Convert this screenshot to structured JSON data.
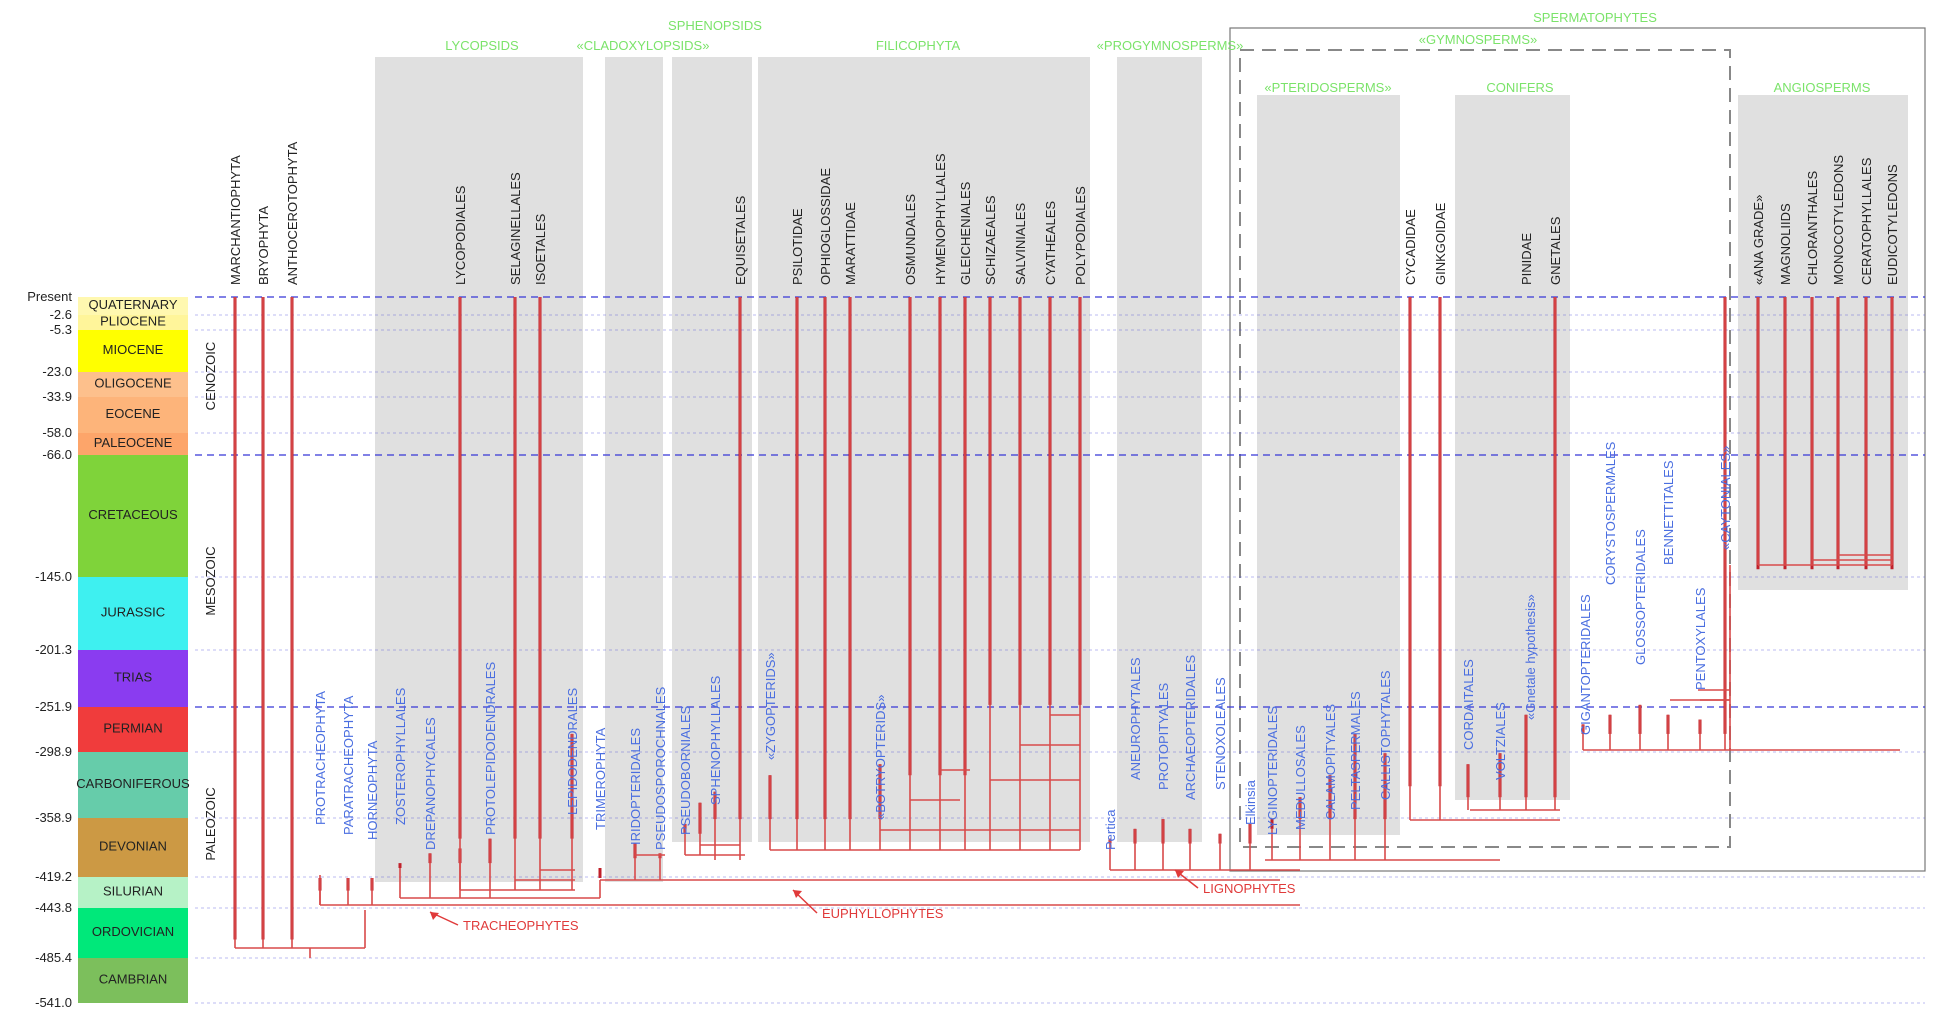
{
  "time_scale": {
    "ticks": [
      {
        "label": "Present",
        "age": 0
      },
      {
        "label": "-2.6",
        "age": 2.6
      },
      {
        "label": "-5.3",
        "age": 5.3
      },
      {
        "label": "-23.0",
        "age": 23.0
      },
      {
        "label": "-33.9",
        "age": 33.9
      },
      {
        "label": "-58.0",
        "age": 58.0
      },
      {
        "label": "-66.0",
        "age": 66.0
      },
      {
        "label": "-145.0",
        "age": 145.0
      },
      {
        "label": "-201.3",
        "age": 201.3
      },
      {
        "label": "-251.9",
        "age": 251.9
      },
      {
        "label": "-298.9",
        "age": 298.9
      },
      {
        "label": "-358.9",
        "age": 358.9
      },
      {
        "label": "-419.2",
        "age": 419.2
      },
      {
        "label": "-443.8",
        "age": 443.8
      },
      {
        "label": "-485.4",
        "age": 485.4
      },
      {
        "label": "-541.0",
        "age": 541.0
      }
    ],
    "periods": [
      {
        "label": "QUATERNARY",
        "from": 0,
        "to": 2.6,
        "color": "#fff8b0"
      },
      {
        "label": "PLIOCENE",
        "from": 2.6,
        "to": 5.3,
        "color": "#fff59a"
      },
      {
        "label": "MIOCENE",
        "from": 5.3,
        "to": 23.0,
        "color": "#ffff00"
      },
      {
        "label": "OLIGOCENE",
        "from": 23.0,
        "to": 33.9,
        "color": "#fdc08c"
      },
      {
        "label": "EOCENE",
        "from": 33.9,
        "to": 58.0,
        "color": "#fdb47a"
      },
      {
        "label": "PALEOCENE",
        "from": 58.0,
        "to": 66.0,
        "color": "#fda56a"
      },
      {
        "label": "CRETACEOUS",
        "from": 66.0,
        "to": 145.0,
        "color": "#7fd33a"
      },
      {
        "label": "JURASSIC",
        "from": 145.0,
        "to": 201.3,
        "color": "#3ef0f0"
      },
      {
        "label": "TRIAS",
        "from": 201.3,
        "to": 251.9,
        "color": "#8a3cf0"
      },
      {
        "label": "PERMIAN",
        "from": 251.9,
        "to": 298.9,
        "color": "#f03c3c"
      },
      {
        "label": "CARBONIFEROUS",
        "from": 298.9,
        "to": 358.9,
        "color": "#66ccaa"
      },
      {
        "label": "DEVONIAN",
        "from": 358.9,
        "to": 419.2,
        "color": "#cc9944"
      },
      {
        "label": "SILURIAN",
        "from": 419.2,
        "to": 443.8,
        "color": "#b6f2c6"
      },
      {
        "label": "ORDOVICIAN",
        "from": 443.8,
        "to": 485.4,
        "color": "#00e87a"
      },
      {
        "label": "CAMBRIAN",
        "from": 485.4,
        "to": 541.0,
        "color": "#7cbf5c"
      }
    ],
    "eras": [
      {
        "label": "CENOZOIC",
        "from": 0,
        "to": 66.0
      },
      {
        "label": "MESOZOIC",
        "from": 66.0,
        "to": 251.9
      },
      {
        "label": "PALEOZOIC",
        "from": 251.9,
        "to": 541.0
      }
    ]
  },
  "group_labels": [
    {
      "label": "SPERMATOPHYTES",
      "key": "sperm"
    },
    {
      "label": "LYCOPSIDS",
      "key": "lyco"
    },
    {
      "label": "«CLADOXYLOPSIDS»",
      "key": "clado"
    },
    {
      "label": "SPHENOPSIDS",
      "key": "spheno"
    },
    {
      "label": "FILICOPHYTA",
      "key": "fili"
    },
    {
      "label": "«PROGYMNOSPERMS»",
      "key": "progym"
    },
    {
      "label": "«GYMNOSPERMS»",
      "key": "gymno"
    },
    {
      "label": "«PTERIDOSPERMS»",
      "key": "pterido"
    },
    {
      "label": "CONIFERS",
      "key": "conif"
    },
    {
      "label": "ANGIOSPERMS",
      "key": "angio"
    }
  ],
  "extant_taxa": [
    {
      "label": "MARCHANTIOPHYTA",
      "key": "t1"
    },
    {
      "label": "BRYOPHYTA",
      "key": "t2"
    },
    {
      "label": "ANTHOCEROTOPHYTA",
      "key": "t3"
    },
    {
      "label": "LYCOPODIALES",
      "key": "t4"
    },
    {
      "label": "SELAGINELLALES",
      "key": "t5"
    },
    {
      "label": "ISOETALES",
      "key": "t6"
    },
    {
      "label": "EQUISETALES",
      "key": "t7"
    },
    {
      "label": "PSILOTIDAE",
      "key": "t8"
    },
    {
      "label": "OPHIOGLOSSIDAE",
      "key": "t9"
    },
    {
      "label": "MARATTIDAE",
      "key": "t10"
    },
    {
      "label": "OSMUNDALES",
      "key": "t11"
    },
    {
      "label": "HYMENOPHYLLALES",
      "key": "t12"
    },
    {
      "label": "GLEICHENIALES",
      "key": "t13"
    },
    {
      "label": "SCHIZAEALES",
      "key": "t14"
    },
    {
      "label": "SALVINIALES",
      "key": "t15"
    },
    {
      "label": "CYATHEALES",
      "key": "t16"
    },
    {
      "label": "POLYPODIALES",
      "key": "t17"
    },
    {
      "label": "CYCADIDAE",
      "key": "t18"
    },
    {
      "label": "GINKGOIDAE",
      "key": "t19"
    },
    {
      "label": "PINIDAE",
      "key": "t20"
    },
    {
      "label": "GNETALES",
      "key": "t21"
    },
    {
      "label": "«ANA GRADE»",
      "key": "t22"
    },
    {
      "label": "MAGNOLIIDS",
      "key": "t23"
    },
    {
      "label": "CHLORANTHALES",
      "key": "t24"
    },
    {
      "label": "MONOCOTYLEDONS",
      "key": "t25"
    },
    {
      "label": "CERATOPHYLLALES",
      "key": "t26"
    },
    {
      "label": "EUDICOTYLEDONS",
      "key": "t27"
    }
  ],
  "fossil_taxa": [
    {
      "label": "PROTRACHEOPHYTA",
      "key": "f1"
    },
    {
      "label": "PARATRACHEOPHYTA",
      "key": "f2"
    },
    {
      "label": "HORNEOPHYTA",
      "key": "f3"
    },
    {
      "label": "ZOSTEROPHYLLALES",
      "key": "f4"
    },
    {
      "label": "DREPANOPHYCALES",
      "key": "f5"
    },
    {
      "label": "PROTOLEPIDODENDRALES",
      "key": "f6"
    },
    {
      "label": "LEPIDODENDRALES",
      "key": "f7"
    },
    {
      "label": "TRIMEROPHYTA",
      "key": "f8"
    },
    {
      "label": "IRIDOPTERIDALES",
      "key": "f9"
    },
    {
      "label": "PSEUDOSPOROCHNALES",
      "key": "f10"
    },
    {
      "label": "PSEUDOBORNIALES",
      "key": "f11"
    },
    {
      "label": "SPHENOPHYLLALES",
      "key": "f12"
    },
    {
      "label": "«ZYGOPTERIDS»",
      "key": "f13"
    },
    {
      "label": "«BOTRYOPTERIDS»",
      "key": "f14"
    },
    {
      "label": "Pertica",
      "key": "f15"
    },
    {
      "label": "ANEUROPHYTALES",
      "key": "f16"
    },
    {
      "label": "PROTOPITYALES",
      "key": "f17"
    },
    {
      "label": "ARCHAEOPTERIDALES",
      "key": "f18"
    },
    {
      "label": "STENOXOLEALES",
      "key": "f19"
    },
    {
      "label": "Elkinsia",
      "key": "f20"
    },
    {
      "label": "LYGINOPTERIDALES",
      "key": "f21"
    },
    {
      "label": "MEDULLOSALES",
      "key": "f22"
    },
    {
      "label": "CALAMOPITYALES",
      "key": "f23"
    },
    {
      "label": "PELTASPERMALES",
      "key": "f24"
    },
    {
      "label": "CALLISTOPHYTALES",
      "key": "f25"
    },
    {
      "label": "CORDAITALES",
      "key": "f26"
    },
    {
      "label": "VOLTZIALES",
      "key": "f27"
    },
    {
      "label": "«Gnetale hypothesis»",
      "key": "f28"
    },
    {
      "label": "GIGANTOPTERIDALES",
      "key": "f29"
    },
    {
      "label": "CORYSTOSPERMALES",
      "key": "f30"
    },
    {
      "label": "GLOSSOPTERIDALES",
      "key": "f31"
    },
    {
      "label": "BENNETTITALES",
      "key": "f32"
    },
    {
      "label": "PENTOXYLALES",
      "key": "f33"
    },
    {
      "label": "«CAYTONIALES»",
      "key": "f34"
    }
  ],
  "clade_labels": [
    {
      "label": "TRACHEOPHYTES",
      "key": "trach"
    },
    {
      "label": "EUPHYLLOPHYTES",
      "key": "euph"
    },
    {
      "label": "LIGNOPHYTES",
      "key": "lign"
    }
  ],
  "colors": {
    "branch": "#d84a4a",
    "range": "#c0202a",
    "extant_label": "#222222",
    "fossil_label": "#4a6ee0",
    "group_label": "#7be36a",
    "clade_label": "#e03a3a",
    "box_fill": "#e0e0e0",
    "grid": "#3a3ad8"
  }
}
